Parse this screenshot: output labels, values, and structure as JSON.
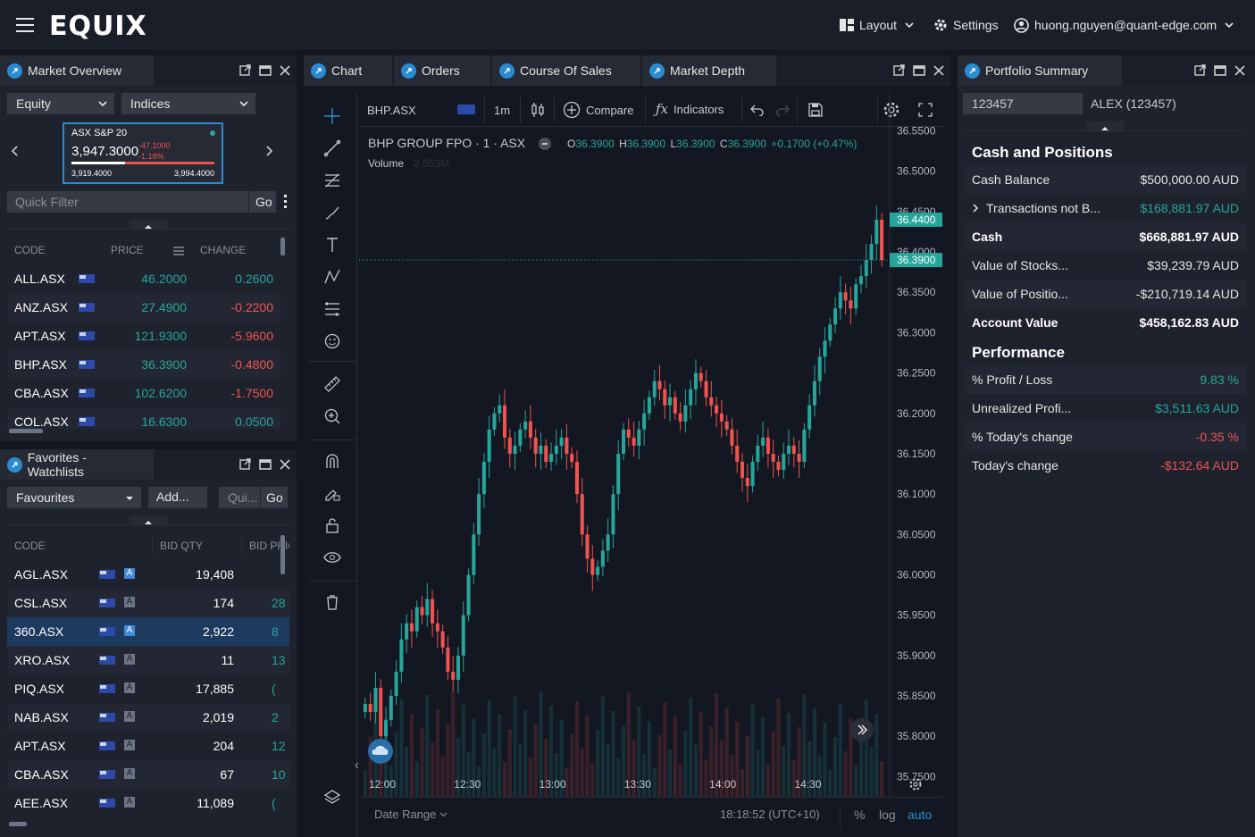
{
  "app": {
    "logo": "EQUIX"
  },
  "topnav": {
    "layout": "Layout",
    "settings": "Settings",
    "user": "huong.nguyen@quant-edge.com"
  },
  "market_overview": {
    "title": "Market Overview",
    "dropdown1": "Equity",
    "dropdown2": "Indices",
    "index_card": {
      "name": "ASX S&P 20",
      "value": "3,947.3000",
      "change": "-47.1000",
      "change_pct": "-1.18%",
      "low": "3,919.4000",
      "high": "3,994.4000"
    },
    "quick_filter_placeholder": "Quick Filter",
    "go": "Go",
    "columns": [
      "CODE",
      "PRICE",
      "CHANGE"
    ],
    "rows": [
      {
        "code": "ALL.ASX",
        "price": "46.2000",
        "change": "0.2600",
        "dir": "pos"
      },
      {
        "code": "ANZ.ASX",
        "price": "27.4900",
        "change": "-0.2200",
        "dir": "neg"
      },
      {
        "code": "APT.ASX",
        "price": "121.9300",
        "change": "-5.9600",
        "dir": "neg"
      },
      {
        "code": "BHP.ASX",
        "price": "36.3900",
        "change": "-0.4800",
        "dir": "neg"
      },
      {
        "code": "CBA.ASX",
        "price": "102.6200",
        "change": "-1.7500",
        "dir": "neg"
      },
      {
        "code": "COL.ASX",
        "price": "16.6300",
        "change": "0.0500",
        "dir": "pos"
      }
    ]
  },
  "favorites": {
    "title": "Favorites - Watchlists",
    "dropdown": "Favourites",
    "add": "Add...",
    "quick_placeholder": "Qui...",
    "go": "Go",
    "columns": [
      "CODE",
      "BID QTY",
      "BID PRIC"
    ],
    "rows": [
      {
        "code": "AGL.ASX",
        "bid_qty": "19,408",
        "bid_price": "",
        "badge": "blue"
      },
      {
        "code": "CSL.ASX",
        "bid_qty": "174",
        "bid_price": "28",
        "badge": "grey"
      },
      {
        "code": "360.ASX",
        "bid_qty": "2,922",
        "bid_price": "8",
        "badge": "blue"
      },
      {
        "code": "XRO.ASX",
        "bid_qty": "11",
        "bid_price": "13",
        "badge": "grey"
      },
      {
        "code": "PIQ.ASX",
        "bid_qty": "17,885",
        "bid_price": "(",
        "badge": "grey"
      },
      {
        "code": "NAB.ASX",
        "bid_qty": "2,019",
        "bid_price": "2",
        "badge": "grey"
      },
      {
        "code": "APT.ASX",
        "bid_qty": "204",
        "bid_price": "12",
        "badge": "grey"
      },
      {
        "code": "CBA.ASX",
        "bid_qty": "67",
        "bid_price": "10",
        "badge": "grey"
      },
      {
        "code": "AEE.ASX",
        "bid_qty": "11,089",
        "bid_price": "(",
        "badge": "grey"
      }
    ],
    "badge_letter": "A"
  },
  "chart_panel": {
    "tabs": [
      "Chart",
      "Orders",
      "Course Of Sales",
      "Market Depth"
    ],
    "symbol": "BHP.ASX",
    "interval": "1m",
    "compare": "Compare",
    "indicators": "Indicators",
    "legend": {
      "name": "BHP GROUP FPO · 1 · ASX",
      "o_label": "O",
      "o": "36.3900",
      "h_label": "H",
      "h": "36.3900",
      "l_label": "L",
      "l": "36.3900",
      "c_label": "C",
      "c": "36.3900",
      "chg": "+0.1700 (+0.47%)",
      "volume": "Volume",
      "volume_val": "2.053M"
    },
    "price_tag_high": "36.4400",
    "price_tag_last": "36.3900",
    "date_range": "Date Range",
    "clock": "18:18:52 (UTC+10)",
    "pct": "%",
    "log": "log",
    "auto": "auto"
  },
  "chart_data": {
    "type": "candlestick",
    "y_ticks": [
      "36.5500",
      "36.5000",
      "36.4500",
      "36.4000",
      "36.3500",
      "36.3000",
      "36.2500",
      "36.2000",
      "36.1500",
      "36.1000",
      "36.0500",
      "36.0000",
      "35.9500",
      "35.9000",
      "35.8500",
      "35.8000",
      "35.7500"
    ],
    "x_ticks": [
      "12:00",
      "12:30",
      "13:00",
      "13:30",
      "14:00",
      "14:30"
    ],
    "ylim": [
      35.725,
      36.555
    ],
    "close_series": [
      35.84,
      35.83,
      35.86,
      35.8,
      35.82,
      35.85,
      35.88,
      35.92,
      35.94,
      35.93,
      35.96,
      35.95,
      35.97,
      35.94,
      35.93,
      35.91,
      35.88,
      35.87,
      35.9,
      35.95,
      36.0,
      36.05,
      36.1,
      36.14,
      36.18,
      36.2,
      36.21,
      36.17,
      36.15,
      36.16,
      36.18,
      36.19,
      36.17,
      36.15,
      36.16,
      36.14,
      36.15,
      36.16,
      36.17,
      36.15,
      36.14,
      36.1,
      36.05,
      36.02,
      36.0,
      36.01,
      36.03,
      36.05,
      36.1,
      36.15,
      36.18,
      36.17,
      36.16,
      36.18,
      36.2,
      36.22,
      36.24,
      36.23,
      36.21,
      36.22,
      36.2,
      36.19,
      36.21,
      36.23,
      36.25,
      36.24,
      36.22,
      36.21,
      36.2,
      36.19,
      36.18,
      36.16,
      36.14,
      36.12,
      36.11,
      36.14,
      36.16,
      36.17,
      36.15,
      36.14,
      36.13,
      36.15,
      36.16,
      36.15,
      36.14,
      36.18,
      36.21,
      36.24,
      36.27,
      36.29,
      36.31,
      36.33,
      36.35,
      36.34,
      36.33,
      36.36,
      36.37,
      36.39,
      36.41,
      36.44,
      36.39
    ],
    "volume_bars": true
  },
  "chart_toolbar_icons": [
    "crosshair-icon",
    "trend-line-icon",
    "fib-icon",
    "brush-icon",
    "text-icon",
    "pattern-icon",
    "projection-icon",
    "emoji-icon",
    "ruler-icon",
    "zoom-in-icon",
    "magnet-icon",
    "lock-drawing-icon",
    "lock-icon",
    "eye-icon",
    "trash-icon",
    "layers-icon"
  ],
  "portfolio": {
    "title": "Portfolio Summary",
    "account_id": "123457",
    "account_name": "ALEX (123457)",
    "cash_section": "Cash and Positions",
    "cash_rows": [
      {
        "label": "Cash Balance",
        "value": "$500,000.00 AUD",
        "style": "white",
        "bold": false
      },
      {
        "label": "Transactions not B...",
        "value": "$168,881.97 AUD",
        "style": "pos",
        "bold": false,
        "expand": true
      },
      {
        "label": "Cash",
        "value": "$668,881.97 AUD",
        "style": "white",
        "bold": true
      },
      {
        "label": "Value of Stocks...",
        "value": "$39,239.79 AUD",
        "style": "white",
        "bold": false
      },
      {
        "label": "Value of Positio...",
        "value": "-$210,719.14 AUD",
        "style": "white",
        "bold": false
      },
      {
        "label": "Account Value",
        "value": "$458,162.83 AUD",
        "style": "white",
        "bold": true
      }
    ],
    "perf_section": "Performance",
    "perf_rows": [
      {
        "label": "% Profit / Loss",
        "value": "9.83 %",
        "style": "pos"
      },
      {
        "label": "Unrealized Profi...",
        "value": "$3,511.63 AUD",
        "style": "pos"
      },
      {
        "label": "% Today's change",
        "value": "-0.35 %",
        "style": "neg"
      },
      {
        "label": "Today's change",
        "value": "-$132.64 AUD",
        "style": "neg"
      }
    ]
  },
  "colors": {
    "up": "#26a69a",
    "down": "#ef5350",
    "accent": "#2a8bd3",
    "panel": "#1e222d",
    "bg": "#131722"
  }
}
